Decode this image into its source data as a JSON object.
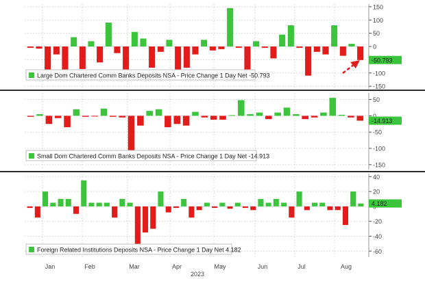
{
  "colors": {
    "positive": "#3cc43c",
    "negative": "#e21b1b",
    "axis_text": "#444444",
    "grid": "#d9d9d9",
    "divider": "#2a2a2a",
    "legend_border": "#bdbdbd",
    "value_label_bg": "#3cc43c",
    "value_label_text": "#1a1a1a",
    "arrow": "#e21b1b"
  },
  "x_axis": {
    "month_labels": [
      "Jan",
      "Feb",
      "Mar",
      "Apr",
      "May",
      "Jun",
      "Jul",
      "Aug"
    ],
    "year_label": "2023"
  },
  "chart_data": [
    {
      "type": "bar",
      "title": "",
      "legend": "Large Dom Chartered Comm Banks Deposits NSA - Price Change 1 Day Net -50.793",
      "last_value_label": "-50.793",
      "ylim": [
        -160,
        160
      ],
      "yticks": [
        150,
        100,
        50,
        0,
        -50,
        -100,
        -150
      ],
      "ylabel": "",
      "annotation": "red dashed arrow pointing to last bar",
      "values": [
        -5,
        -8,
        -100,
        -30,
        -100,
        35,
        -85,
        20,
        -60,
        90,
        -25,
        -100,
        55,
        30,
        -80,
        -20,
        25,
        -115,
        -80,
        -30,
        25,
        -15,
        -10,
        145,
        -5,
        -95,
        20,
        -5,
        -45,
        45,
        80,
        -5,
        -110,
        -20,
        -30,
        80,
        -35,
        10,
        -51
      ]
    },
    {
      "type": "bar",
      "title": "",
      "legend": "Small Dom Chartered Comm Banks Deposits NSA - Price Change 1 Day Net -14.913",
      "last_value_label": "-14.913",
      "ylim": [
        -165,
        70
      ],
      "yticks": [
        50,
        0,
        -50,
        -100,
        -150
      ],
      "ylabel": "",
      "values": [
        -3,
        5,
        -25,
        -7,
        -35,
        20,
        -3,
        -2,
        22,
        -3,
        -5,
        -125,
        -30,
        15,
        20,
        -35,
        -25,
        -30,
        12,
        -5,
        -12,
        -12,
        2,
        48,
        5,
        10,
        -10,
        10,
        25,
        5,
        -10,
        -5,
        10,
        55,
        3,
        -5,
        -15
      ]
    },
    {
      "type": "bar",
      "title": "",
      "legend": "Foreign Related Institutions Deposits NSA - Price Change 1 Day Net 4.182",
      "last_value_label": "4.182",
      "ylim": [
        -68,
        44
      ],
      "yticks": [
        40,
        20,
        0,
        -20,
        -40,
        -60
      ],
      "ylabel": "",
      "values": [
        -2,
        -15,
        20,
        5,
        10,
        10,
        -10,
        35,
        5,
        5,
        5,
        -15,
        10,
        5,
        -60,
        -35,
        -30,
        20,
        -8,
        -2,
        10,
        -15,
        -5,
        5,
        -2,
        5,
        -3,
        5,
        -2,
        -5,
        10,
        5,
        10,
        5,
        -15,
        20,
        -5,
        5,
        5,
        -5,
        -5,
        -25,
        20,
        4
      ]
    }
  ]
}
